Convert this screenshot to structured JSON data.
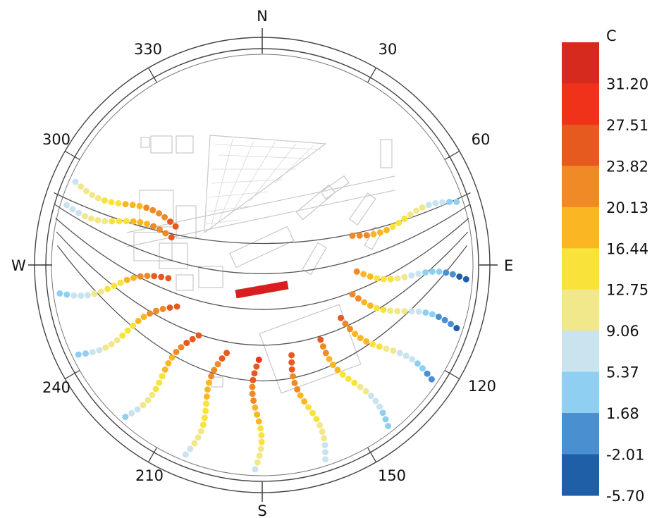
{
  "chart_data": {
    "type": "scatter",
    "projection": "polar sun-path (stereographic sky dome)",
    "compass": {
      "north": "N",
      "east": "E",
      "south": "S",
      "west": "W"
    },
    "azimuth_ticks": [
      "30",
      "60",
      "120",
      "150",
      "210",
      "240",
      "300",
      "330"
    ],
    "colorbar": {
      "unit": "C",
      "tick_labels": [
        "31.20",
        "27.51",
        "23.82",
        "20.13",
        "16.44",
        "12.75",
        "9.06",
        "5.37",
        "1.68",
        "-2.01",
        "-5.70"
      ],
      "colors": [
        "#d62a1e",
        "#f0321a",
        "#e65a20",
        "#f08a26",
        "#fbb624",
        "#f9e23a",
        "#f0e88a",
        "#c9e3ef",
        "#8fd0f2",
        "#4a8fcf",
        "#1f5fa8"
      ],
      "range": [
        -5.7,
        35.0
      ]
    },
    "sun_path_columns": [
      {
        "azimuth": 294,
        "top_temp": 26,
        "bottom_temp": 8
      },
      {
        "azimuth": 287,
        "top_temp": 24,
        "bottom_temp": 6
      },
      {
        "azimuth": 262,
        "top_temp": 27,
        "bottom_temp": 3
      },
      {
        "azimuth": 244,
        "top_temp": 26,
        "bottom_temp": 4
      },
      {
        "azimuth": 222,
        "top_temp": 27,
        "bottom_temp": 5
      },
      {
        "azimuth": 202,
        "top_temp": 25,
        "bottom_temp": 8
      },
      {
        "azimuth": 182,
        "top_temp": 28,
        "bottom_temp": 9
      },
      {
        "azimuth": 162,
        "top_temp": 27,
        "bottom_temp": 6
      },
      {
        "azimuth": 142,
        "top_temp": 24,
        "bottom_temp": 2
      },
      {
        "azimuth": 124,
        "top_temp": 25,
        "bottom_temp": -1
      },
      {
        "azimuth": 108,
        "top_temp": 22,
        "bottom_temp": -3
      },
      {
        "azimuth": 94,
        "top_temp": 21,
        "bottom_temp": -4
      },
      {
        "azimuth": 72,
        "top_temp": 23,
        "bottom_temp": 4
      }
    ]
  }
}
